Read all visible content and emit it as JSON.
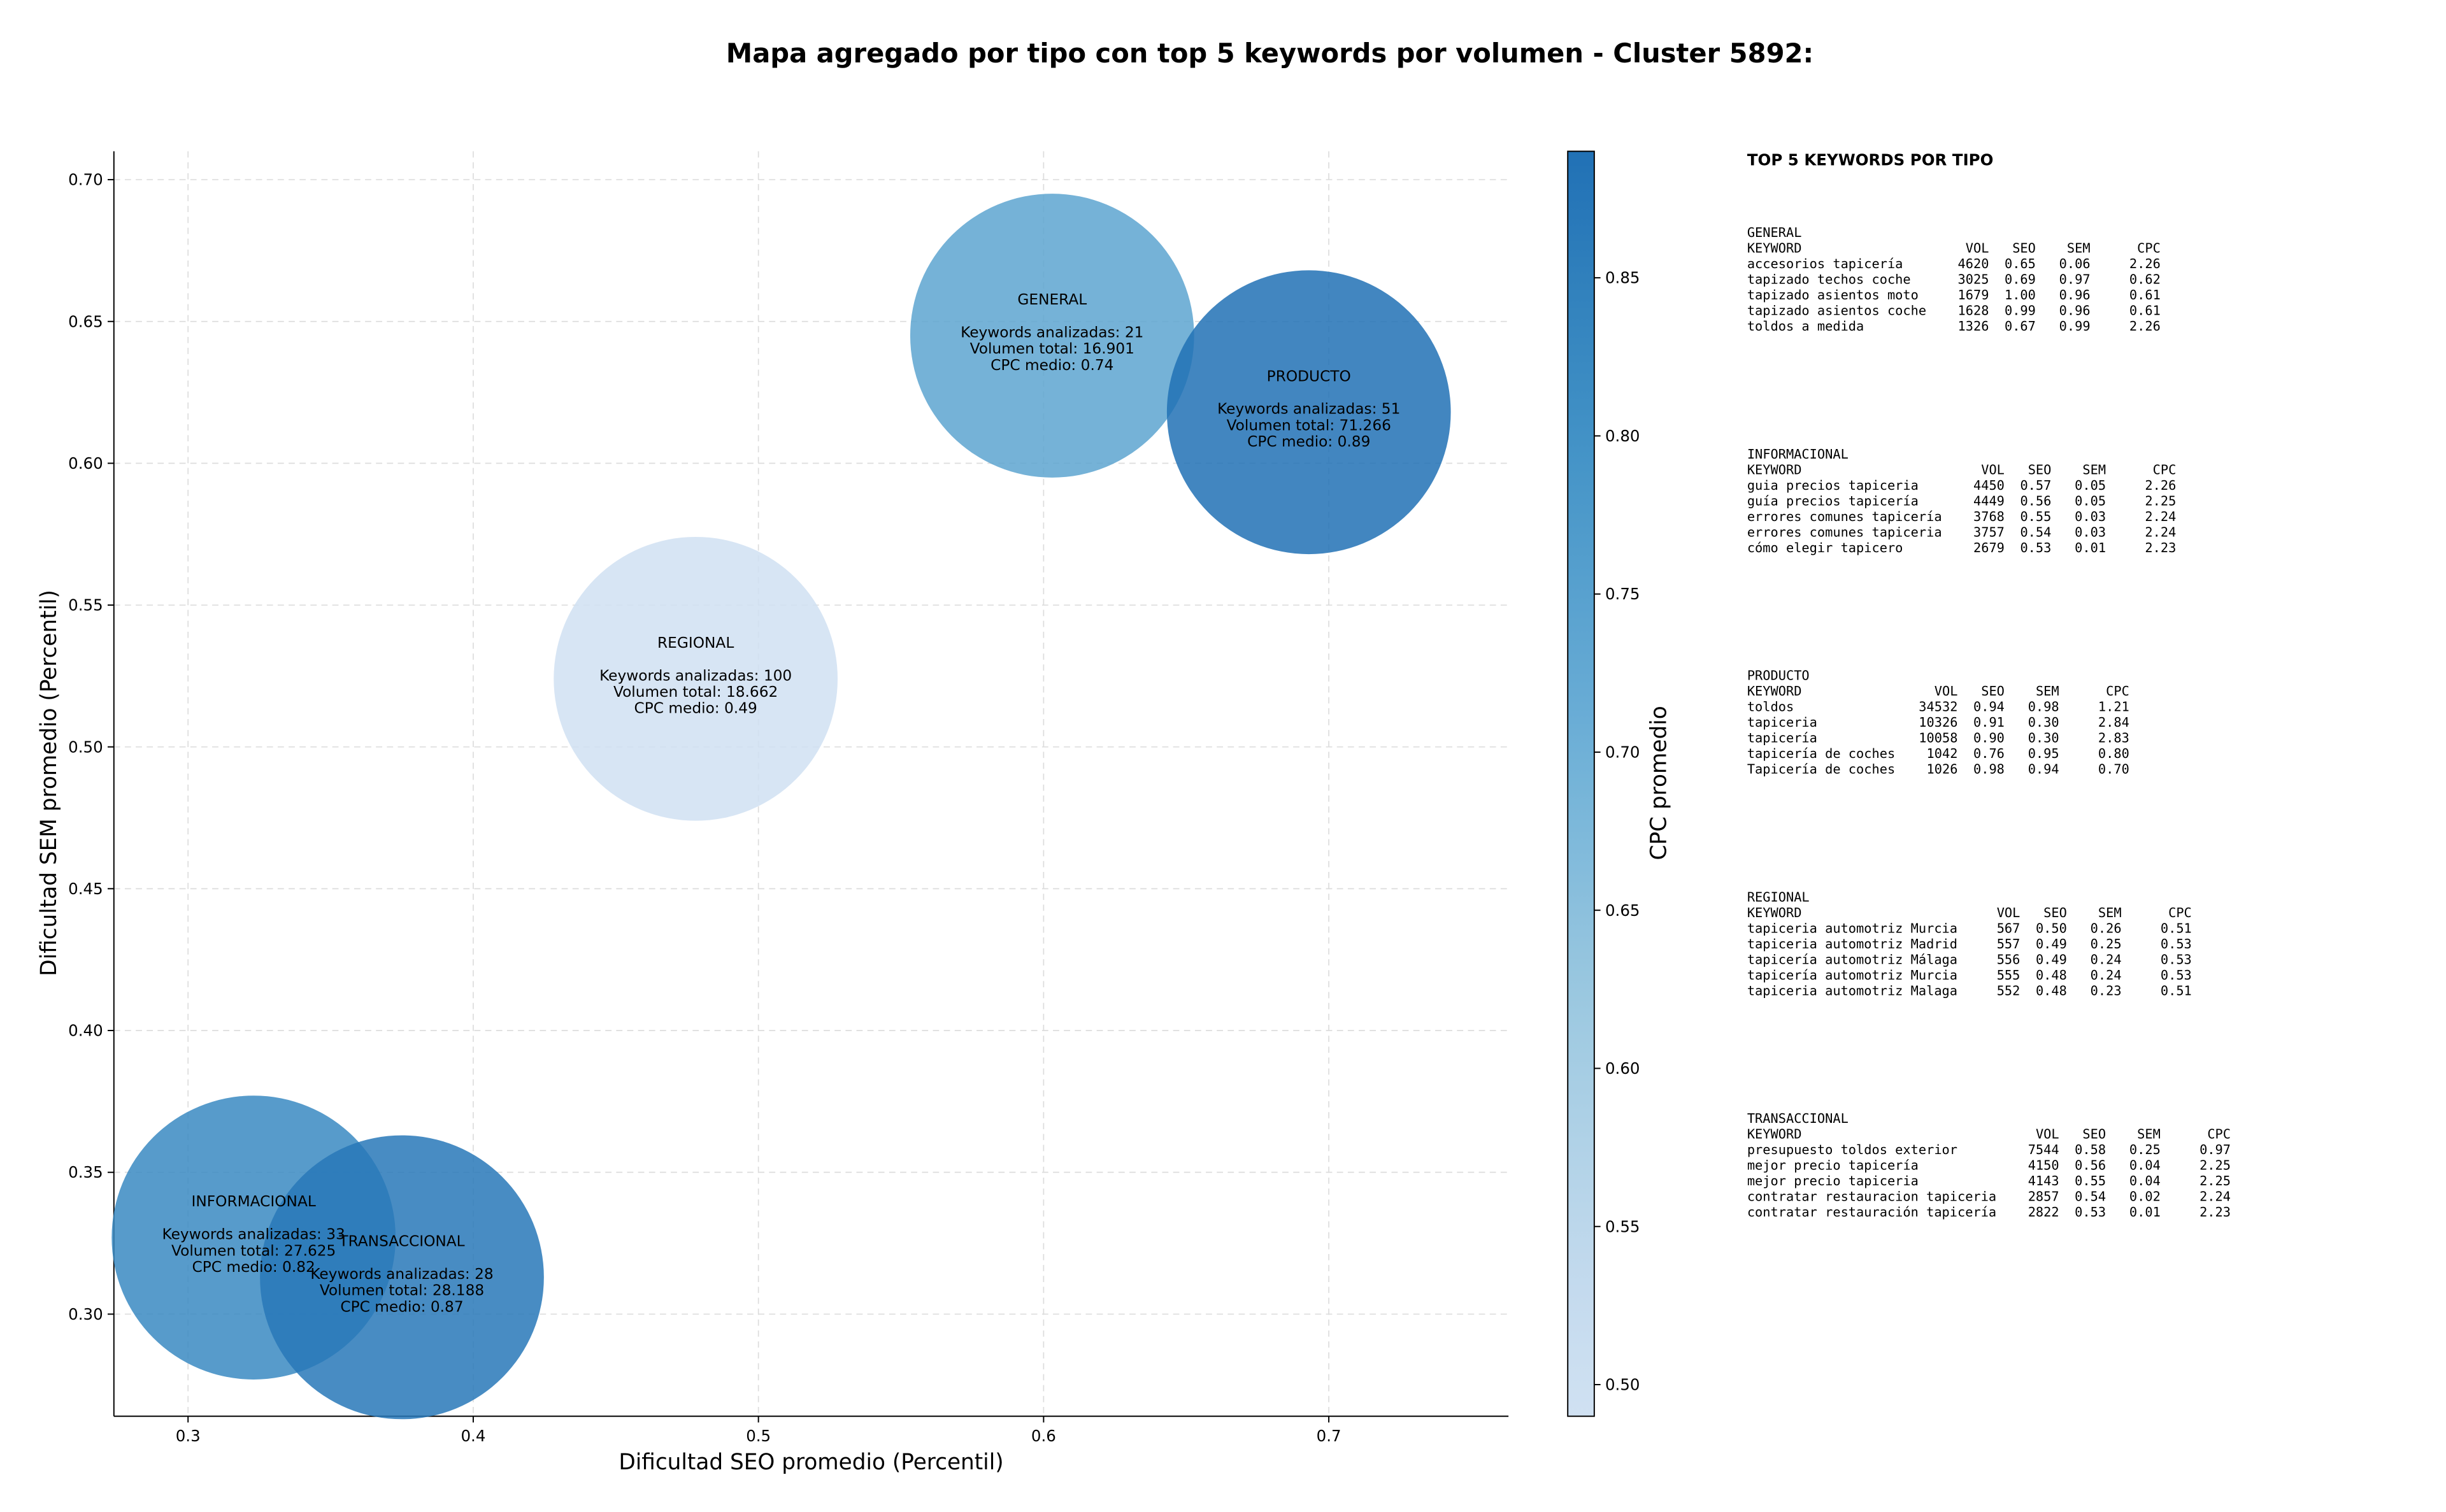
{
  "chart_data": {
    "type": "bubble",
    "title": "Mapa agregado por tipo con top 5 keywords por volumen - Cluster 5892:",
    "xlabel": "Dificultad SEO promedio (Percentil)",
    "ylabel": "Dificultad SEM promedio (Percentil)",
    "colorbar_label": "CPC promedio",
    "colormap": "Blues",
    "grid": true,
    "xlim": [
      0.274,
      0.763
    ],
    "ylim": [
      0.264,
      0.71
    ],
    "clim": [
      0.49,
      0.89
    ],
    "xticks": [
      0.3,
      0.4,
      0.5,
      0.6,
      0.7
    ],
    "yticks": [
      {
        "value": 0.3,
        "label": "0.30"
      },
      {
        "value": 0.35,
        "label": "0.35"
      },
      {
        "value": 0.4,
        "label": "0.40"
      },
      {
        "value": 0.45,
        "label": "0.45"
      },
      {
        "value": 0.5,
        "label": "0.50"
      },
      {
        "value": 0.55,
        "label": "0.55"
      },
      {
        "value": 0.6,
        "label": "0.60"
      },
      {
        "value": 0.65,
        "label": "0.65"
      },
      {
        "value": 0.7,
        "label": "0.70"
      }
    ],
    "cticks": [
      {
        "value": 0.5,
        "label": "0.50"
      },
      {
        "value": 0.55,
        "label": "0.55"
      },
      {
        "value": 0.6,
        "label": "0.60"
      },
      {
        "value": 0.65,
        "label": "0.65"
      },
      {
        "value": 0.7,
        "label": "0.70"
      },
      {
        "value": 0.75,
        "label": "0.75"
      },
      {
        "value": 0.8,
        "label": "0.80"
      },
      {
        "value": 0.85,
        "label": "0.85"
      }
    ],
    "series": [
      {
        "name": "GENERAL",
        "x": 0.603,
        "y": 0.645,
        "cpc": 0.74,
        "labels": [
          "Keywords analizadas: 21",
          "Volumen total: 16.901",
          "CPC medio: 0.74"
        ]
      },
      {
        "name": "PRODUCTO",
        "x": 0.693,
        "y": 0.618,
        "cpc": 0.89,
        "labels": [
          "Keywords analizadas: 51",
          "Volumen total: 71.266",
          "CPC medio: 0.89"
        ]
      },
      {
        "name": "REGIONAL",
        "x": 0.478,
        "y": 0.524,
        "cpc": 0.49,
        "labels": [
          "Keywords analizadas: 100",
          "Volumen total: 18.662",
          "CPC medio: 0.49"
        ]
      },
      {
        "name": "INFORMACIONAL",
        "x": 0.323,
        "y": 0.327,
        "cpc": 0.82,
        "labels": [
          "Keywords analizadas: 33",
          "Volumen total: 27.625",
          "CPC medio: 0.82"
        ]
      },
      {
        "name": "TRANSACCIONAL",
        "x": 0.375,
        "y": 0.313,
        "cpc": 0.87,
        "labels": [
          "Keywords analizadas: 28",
          "Volumen total: 28.188",
          "CPC medio: 0.87"
        ]
      }
    ]
  },
  "panel": {
    "title": "TOP 5 KEYWORDS POR TIPO",
    "columns": [
      "KEYWORD",
      "VOL",
      "SEO",
      "SEM",
      "CPC"
    ],
    "tables": [
      {
        "type": "GENERAL",
        "rows": [
          [
            "accesorios tapicería",
            "4620",
            "0.65",
            "0.06",
            "2.26"
          ],
          [
            "tapizado techos coche",
            "3025",
            "0.69",
            "0.97",
            "0.62"
          ],
          [
            "tapizado asientos moto",
            "1679",
            "1.00",
            "0.96",
            "0.61"
          ],
          [
            "tapizado asientos coche",
            "1628",
            "0.99",
            "0.96",
            "0.61"
          ],
          [
            "toldos a medida",
            "1326",
            "0.67",
            "0.99",
            "2.26"
          ]
        ]
      },
      {
        "type": "INFORMACIONAL",
        "rows": [
          [
            "guia precios tapiceria",
            "4450",
            "0.57",
            "0.05",
            "2.26"
          ],
          [
            "guía precios tapicería",
            "4449",
            "0.56",
            "0.05",
            "2.25"
          ],
          [
            "errores comunes tapicería",
            "3768",
            "0.55",
            "0.03",
            "2.24"
          ],
          [
            "errores comunes tapiceria",
            "3757",
            "0.54",
            "0.03",
            "2.24"
          ],
          [
            "cómo elegir tapicero",
            "2679",
            "0.53",
            "0.01",
            "2.23"
          ]
        ]
      },
      {
        "type": "PRODUCTO",
        "rows": [
          [
            "toldos",
            "34532",
            "0.94",
            "0.98",
            "1.21"
          ],
          [
            "tapiceria",
            "10326",
            "0.91",
            "0.30",
            "2.84"
          ],
          [
            "tapicería",
            "10058",
            "0.90",
            "0.30",
            "2.83"
          ],
          [
            "tapicería de coches",
            "1042",
            "0.76",
            "0.95",
            "0.80"
          ],
          [
            "Tapicería de coches",
            "1026",
            "0.98",
            "0.94",
            "0.70"
          ]
        ]
      },
      {
        "type": "REGIONAL",
        "rows": [
          [
            "tapiceria automotriz Murcia",
            "567",
            "0.50",
            "0.26",
            "0.51"
          ],
          [
            "tapiceria automotriz Madrid",
            "557",
            "0.49",
            "0.25",
            "0.53"
          ],
          [
            "tapicería automotriz Málaga",
            "556",
            "0.49",
            "0.24",
            "0.53"
          ],
          [
            "tapicería automotriz Murcia",
            "555",
            "0.48",
            "0.24",
            "0.53"
          ],
          [
            "tapiceria automotriz Malaga",
            "552",
            "0.48",
            "0.23",
            "0.51"
          ]
        ]
      },
      {
        "type": "TRANSACCIONAL",
        "rows": [
          [
            "presupuesto toldos exterior",
            "7544",
            "0.58",
            "0.25",
            "0.97"
          ],
          [
            "mejor precio tapicería",
            "4150",
            "0.56",
            "0.04",
            "2.25"
          ],
          [
            "mejor precio tapiceria",
            "4143",
            "0.55",
            "0.04",
            "2.25"
          ],
          [
            "contratar restauracion tapiceria",
            "2857",
            "0.54",
            "0.02",
            "2.24"
          ],
          [
            "contratar restauración tapicería",
            "2822",
            "0.53",
            "0.01",
            "2.23"
          ]
        ]
      }
    ]
  }
}
